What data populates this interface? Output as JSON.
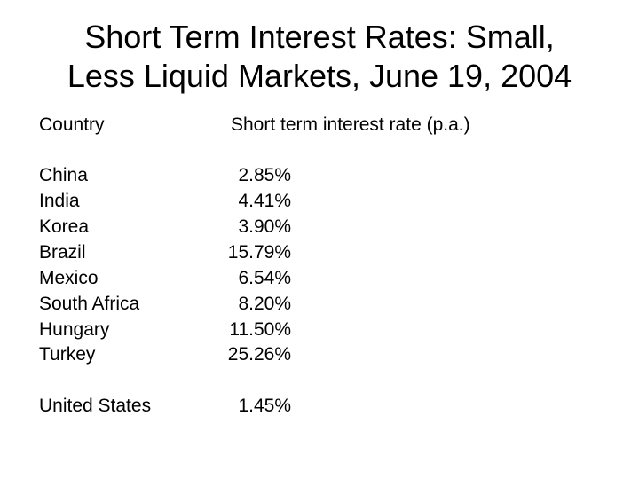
{
  "title": {
    "line1": "Short Term Interest Rates: Small,",
    "line2": "Less Liquid Markets, June 19, 2004"
  },
  "table": {
    "headers": {
      "country": "Country",
      "rate": "Short term interest rate (p.a.)"
    },
    "rows": [
      {
        "country": "China",
        "rate": "2.85%"
      },
      {
        "country": "India",
        "rate": "4.41%"
      },
      {
        "country": "Korea",
        "rate": "3.90%"
      },
      {
        "country": "Brazil",
        "rate": "15.79%"
      },
      {
        "country": "Mexico",
        "rate": "6.54%"
      },
      {
        "country": "South Africa",
        "rate": "8.20%"
      },
      {
        "country": "Hungary",
        "rate": "11.50%"
      },
      {
        "country": "Turkey",
        "rate": "25.26%"
      }
    ],
    "footer_row": {
      "country": "United States",
      "rate": "1.45%"
    }
  }
}
